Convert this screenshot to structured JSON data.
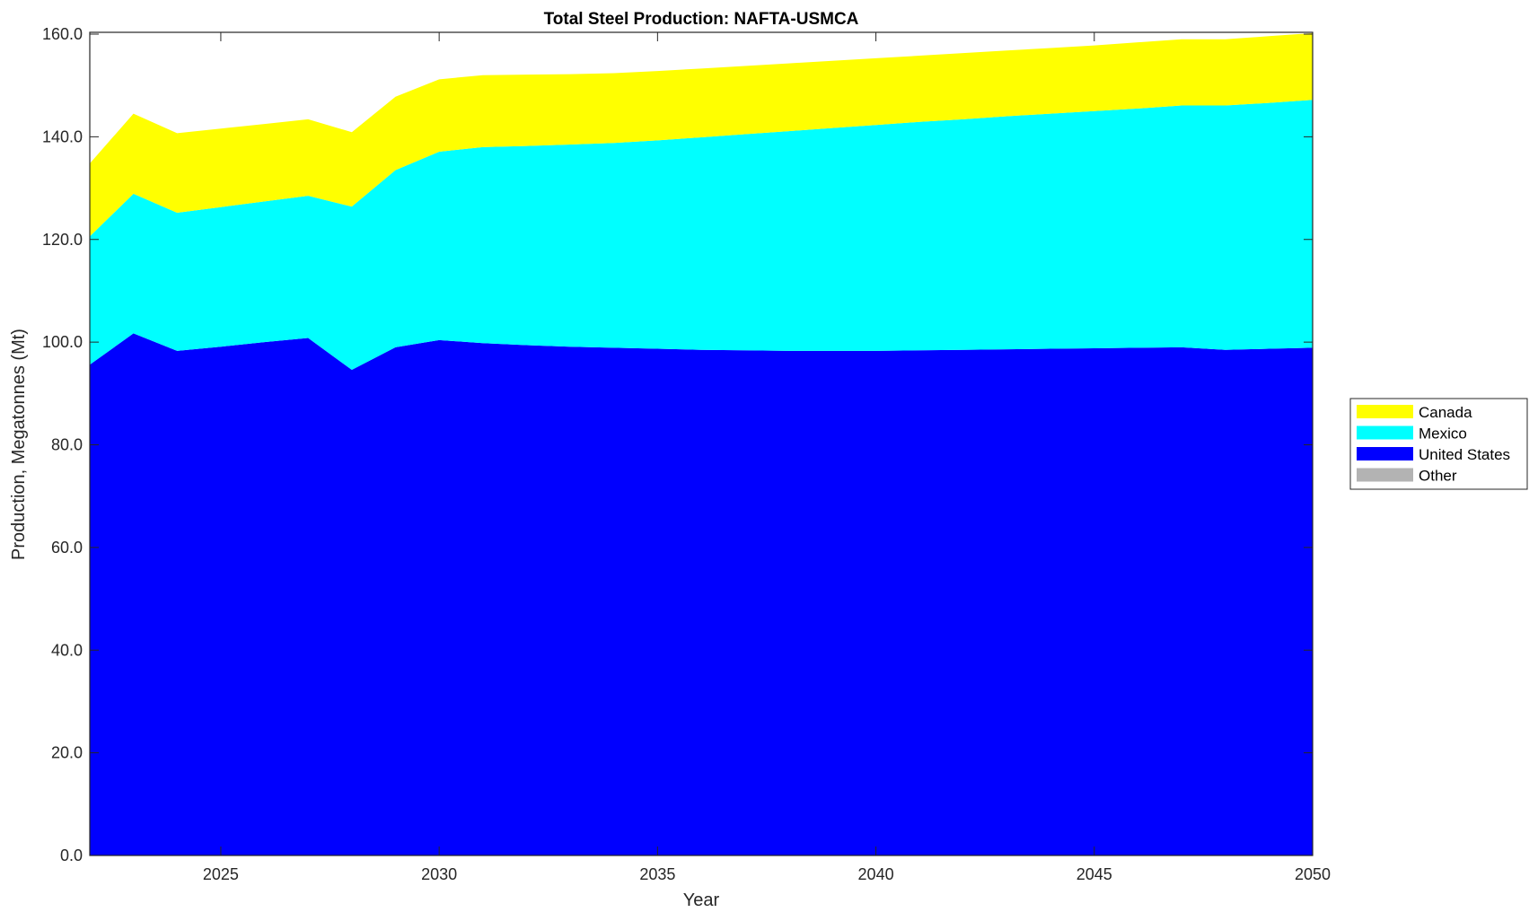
{
  "chart_data": {
    "type": "area",
    "stacked": true,
    "title": "Total Steel Production: NAFTA-USMCA",
    "xlabel": "Year",
    "ylabel": "Production, Megatonnes (Mt)",
    "xlim": [
      2022,
      2050
    ],
    "ylim": [
      0,
      160
    ],
    "xticks": [
      "2025",
      "2030",
      "2035",
      "2040",
      "2045",
      "2050"
    ],
    "yticks": [
      "0.0",
      "20.0",
      "40.0",
      "60.0",
      "80.0",
      "100.0",
      "120.0",
      "140.0",
      "160.0"
    ],
    "grid": false,
    "legend_position": "right",
    "x": [
      2022,
      2023,
      2024,
      2025,
      2026,
      2027,
      2028,
      2029,
      2030,
      2031,
      2032,
      2033,
      2034,
      2035,
      2036,
      2037,
      2038,
      2039,
      2040,
      2041,
      2042,
      2043,
      2044,
      2045,
      2046,
      2047,
      2048,
      2049,
      2050
    ],
    "series": [
      {
        "name": "Other",
        "color": "#b3b3b3",
        "values": [
          0,
          0,
          0,
          0,
          0,
          0,
          0,
          0,
          0,
          0,
          0,
          0,
          0,
          0,
          0,
          0,
          0,
          0,
          0,
          0,
          0,
          0,
          0,
          0,
          0,
          0,
          0,
          0,
          0
        ]
      },
      {
        "name": "United States",
        "color": "#0000ff",
        "values": [
          95.6,
          101.7,
          98.3,
          99.1,
          100.0,
          100.8,
          94.6,
          99.0,
          100.4,
          99.8,
          99.4,
          99.1,
          98.9,
          98.7,
          98.5,
          98.4,
          98.3,
          98.3,
          98.3,
          98.4,
          98.5,
          98.6,
          98.7,
          98.8,
          98.9,
          99.0,
          98.5,
          98.7,
          98.9
        ]
      },
      {
        "name": "Mexico",
        "color": "#00ffff",
        "values": [
          25.0,
          27.2,
          26.9,
          27.2,
          27.4,
          27.7,
          31.8,
          34.5,
          36.7,
          38.2,
          38.8,
          39.4,
          39.9,
          40.6,
          41.4,
          42.1,
          42.8,
          43.4,
          44.0,
          44.5,
          44.9,
          45.4,
          45.8,
          46.2,
          46.6,
          47.1,
          47.6,
          47.9,
          48.3
        ]
      },
      {
        "name": "Canada",
        "color": "#ffff00",
        "values": [
          14.2,
          15.6,
          15.5,
          15.3,
          15.1,
          14.9,
          14.5,
          14.3,
          14.1,
          14.0,
          13.9,
          13.7,
          13.6,
          13.5,
          13.4,
          13.3,
          13.2,
          13.1,
          13.0,
          12.9,
          12.9,
          12.8,
          12.8,
          12.8,
          12.9,
          12.9,
          12.9,
          13.0,
          13.0
        ]
      }
    ],
    "legend_order": [
      "Canada",
      "Mexico",
      "United States",
      "Other"
    ]
  }
}
